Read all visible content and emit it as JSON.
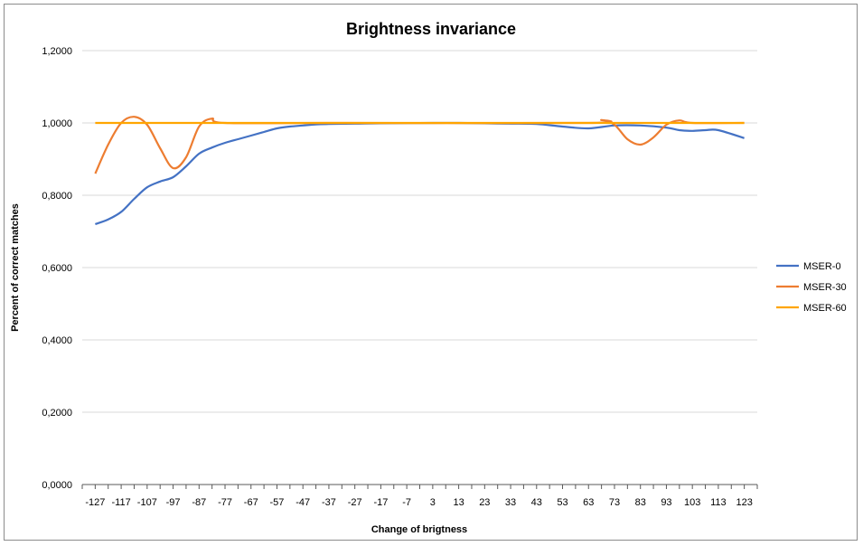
{
  "chart_data": {
    "type": "line",
    "title": "Brightness invariance",
    "xlabel": "Change of brigtness",
    "ylabel": "Percent of correct matches",
    "ylim": [
      0,
      1.2
    ],
    "yticks": [
      "0,0000",
      "0,2000",
      "0,4000",
      "0,6000",
      "0,8000",
      "1,0000",
      "1,2000"
    ],
    "xlim": [
      -127,
      127
    ],
    "xtick_labels": [
      "-127",
      "-117",
      "-107",
      "-97",
      "-87",
      "-77",
      "-67",
      "-57",
      "-47",
      "-37",
      "-27",
      "-17",
      "-7",
      "3",
      "13",
      "23",
      "33",
      "43",
      "53",
      "63",
      "73",
      "83",
      "93",
      "103",
      "113",
      "123"
    ],
    "grid": "horizontal",
    "legend_position": "right",
    "series": [
      {
        "name": "MSER-0",
        "color": "#4472C4",
        "points": [
          [
            -127,
            0.72
          ],
          [
            -122,
            0.733
          ],
          [
            -117,
            0.754
          ],
          [
            -112,
            0.79
          ],
          [
            -107,
            0.822
          ],
          [
            -102,
            0.838
          ],
          [
            -97,
            0.85
          ],
          [
            -92,
            0.88
          ],
          [
            -87,
            0.915
          ],
          [
            -82,
            0.932
          ],
          [
            -77,
            0.945
          ],
          [
            -72,
            0.955
          ],
          [
            -67,
            0.965
          ],
          [
            -62,
            0.975
          ],
          [
            -57,
            0.985
          ],
          [
            -52,
            0.99
          ],
          [
            -47,
            0.993
          ],
          [
            -42,
            0.996
          ],
          [
            -37,
            0.997
          ],
          [
            -27,
            0.998
          ],
          [
            -17,
            0.999
          ],
          [
            3,
            1.0
          ],
          [
            13,
            1.0
          ],
          [
            23,
            0.999
          ],
          [
            33,
            0.998
          ],
          [
            43,
            0.997
          ],
          [
            53,
            0.99
          ],
          [
            63,
            0.985
          ],
          [
            73,
            0.993
          ],
          [
            83,
            0.993
          ],
          [
            93,
            0.987
          ],
          [
            98,
            0.98
          ],
          [
            103,
            0.978
          ],
          [
            108,
            0.98
          ],
          [
            113,
            0.98
          ],
          [
            123,
            0.958
          ]
        ]
      },
      {
        "name": "MSER-30",
        "color": "#ED7D31",
        "points": [
          [
            -127,
            0.86
          ],
          [
            -122,
            0.94
          ],
          [
            -117,
            1.0
          ],
          [
            -112,
            1.017
          ],
          [
            -107,
            0.995
          ],
          [
            -102,
            0.93
          ],
          [
            -97,
            0.875
          ],
          [
            -92,
            0.905
          ],
          [
            -87,
            0.99
          ],
          [
            -82,
            1.012
          ],
          [
            -77,
            1.0
          ],
          [
            -37,
            1.0
          ],
          [
            63,
            1.0
          ],
          [
            68,
            1.008
          ],
          [
            73,
            0.995
          ],
          [
            78,
            0.955
          ],
          [
            83,
            0.94
          ],
          [
            88,
            0.96
          ],
          [
            93,
            0.995
          ],
          [
            98,
            1.007
          ],
          [
            103,
            1.0
          ],
          [
            123,
            1.0
          ]
        ]
      },
      {
        "name": "MSER-60",
        "color": "#FFA500",
        "points": [
          [
            -127,
            1.0
          ],
          [
            123,
            1.0
          ]
        ]
      }
    ]
  }
}
